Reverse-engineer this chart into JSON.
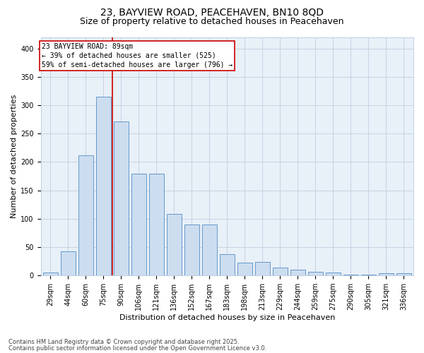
{
  "title_line1": "23, BAYVIEW ROAD, PEACEHAVEN, BN10 8QD",
  "title_line2": "Size of property relative to detached houses in Peacehaven",
  "xlabel": "Distribution of detached houses by size in Peacehaven",
  "ylabel": "Number of detached properties",
  "categories": [
    "29sqm",
    "44sqm",
    "60sqm",
    "75sqm",
    "90sqm",
    "106sqm",
    "121sqm",
    "136sqm",
    "152sqm",
    "167sqm",
    "183sqm",
    "198sqm",
    "213sqm",
    "229sqm",
    "244sqm",
    "259sqm",
    "275sqm",
    "290sqm",
    "305sqm",
    "321sqm",
    "336sqm"
  ],
  "values": [
    5,
    43,
    212,
    315,
    271,
    179,
    179,
    109,
    90,
    90,
    38,
    23,
    24,
    14,
    10,
    6,
    5,
    2,
    2,
    4,
    4
  ],
  "bar_color": "#ccddef",
  "bar_edge_color": "#6699cc",
  "vline_color": "#cc0000",
  "vline_x": 3.5,
  "annotation_text": "23 BAYVIEW ROAD: 89sqm\n← 39% of detached houses are smaller (525)\n59% of semi-detached houses are larger (796) →",
  "annotation_box_edge": "#cc0000",
  "ylim": [
    0,
    420
  ],
  "yticks": [
    0,
    50,
    100,
    150,
    200,
    250,
    300,
    350,
    400
  ],
  "grid_color": "#c0cfe0",
  "bg_color": "#e8f0f8",
  "footer_line1": "Contains HM Land Registry data © Crown copyright and database right 2025.",
  "footer_line2": "Contains public sector information licensed under the Open Government Licence v3.0.",
  "title_fontsize": 10,
  "subtitle_fontsize": 9,
  "axis_label_fontsize": 8,
  "tick_fontsize": 7,
  "annotation_fontsize": 7,
  "footer_fontsize": 6
}
